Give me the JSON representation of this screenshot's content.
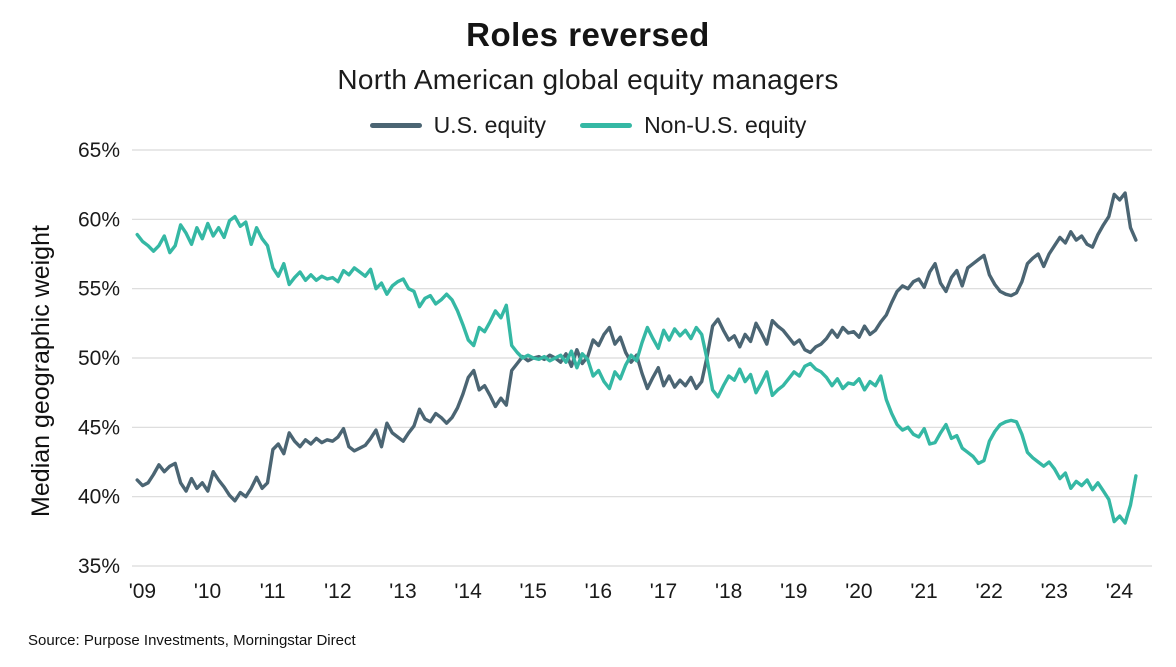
{
  "header": {
    "title": "Roles reversed",
    "subtitle": "North American global equity managers"
  },
  "legend": [
    {
      "label": "U.S. equity",
      "color": "#4b6573"
    },
    {
      "label": "Non-U.S. equity",
      "color": "#35b8a4"
    }
  ],
  "y_axis_title": "Median geographic weight",
  "source": "Source: Purpose Investments, Morningstar Direct",
  "colors": {
    "us_line": "#4b6573",
    "non_us_line": "#35b8a4",
    "gridline": "#d9d9d9",
    "tick_text": "#1a1a1a"
  },
  "chart_data": {
    "type": "line",
    "title": "Roles reversed",
    "subtitle": "North American global equity managers",
    "ylabel": "Median geographic weight",
    "xlabel": "",
    "grid": "horizontal",
    "legend_position": "top",
    "ylim": [
      35,
      65
    ],
    "xlim": [
      2008.92,
      2024.58
    ],
    "x_start": 2009.0,
    "x_step": 0.0833,
    "x_unit": "monthly, Jan 2009 - May 2024",
    "y_ticks": [
      {
        "v": 65,
        "label": "65%"
      },
      {
        "v": 60,
        "label": "60%"
      },
      {
        "v": 55,
        "label": "55%"
      },
      {
        "v": 50,
        "label": "50%"
      },
      {
        "v": 45,
        "label": "45%"
      },
      {
        "v": 40,
        "label": "40%"
      },
      {
        "v": 35,
        "label": "35%"
      }
    ],
    "x_ticks": [
      {
        "v": 2009,
        "label": "'09"
      },
      {
        "v": 2010,
        "label": "'10"
      },
      {
        "v": 2011,
        "label": "'11"
      },
      {
        "v": 2012,
        "label": "'12"
      },
      {
        "v": 2013,
        "label": "'13"
      },
      {
        "v": 2014,
        "label": "'14"
      },
      {
        "v": 2015,
        "label": "'15"
      },
      {
        "v": 2016,
        "label": "'16"
      },
      {
        "v": 2017,
        "label": "'17"
      },
      {
        "v": 2018,
        "label": "'18"
      },
      {
        "v": 2019,
        "label": "'19"
      },
      {
        "v": 2020,
        "label": "'20"
      },
      {
        "v": 2021,
        "label": "'21"
      },
      {
        "v": 2022,
        "label": "'22"
      },
      {
        "v": 2023,
        "label": "'23"
      },
      {
        "v": 2024,
        "label": "'24"
      }
    ],
    "series": [
      {
        "name": "U.S. equity",
        "color": "#4b6573",
        "values": [
          41.2,
          40.8,
          41.0,
          41.6,
          42.3,
          41.8,
          42.2,
          42.4,
          41.0,
          40.4,
          41.3,
          40.6,
          41.0,
          40.4,
          41.8,
          41.2,
          40.7,
          40.1,
          39.7,
          40.3,
          40.0,
          40.6,
          41.4,
          40.6,
          41.0,
          43.4,
          43.8,
          43.1,
          44.6,
          44.0,
          43.6,
          44.1,
          43.8,
          44.2,
          43.9,
          44.1,
          44.0,
          44.3,
          44.9,
          43.6,
          43.3,
          43.5,
          43.7,
          44.2,
          44.8,
          43.6,
          45.3,
          44.6,
          44.3,
          44.0,
          44.6,
          45.1,
          46.3,
          45.6,
          45.4,
          46.0,
          45.7,
          45.3,
          45.7,
          46.4,
          47.4,
          48.6,
          49.1,
          47.7,
          48.0,
          47.3,
          46.5,
          47.1,
          46.6,
          49.1,
          49.6,
          50.1,
          49.8,
          50.0,
          50.1,
          49.9,
          50.2,
          50.0,
          49.7,
          50.3,
          49.4,
          50.6,
          49.6,
          50.1,
          51.3,
          50.9,
          51.7,
          52.2,
          51.0,
          51.5,
          50.4,
          49.7,
          50.2,
          48.9,
          47.8,
          48.6,
          49.3,
          48.0,
          48.7,
          47.9,
          48.4,
          48.0,
          48.6,
          47.8,
          48.3,
          50.1,
          52.3,
          52.8,
          52.0,
          51.3,
          51.6,
          50.8,
          51.7,
          51.2,
          52.5,
          51.8,
          51.0,
          52.7,
          52.3,
          52.0,
          51.5,
          51.0,
          51.3,
          50.6,
          50.4,
          50.8,
          51.0,
          51.4,
          52.0,
          51.5,
          52.2,
          51.8,
          51.9,
          51.5,
          52.3,
          51.7,
          52.0,
          52.6,
          53.1,
          54.0,
          54.8,
          55.2,
          55.0,
          55.5,
          55.7,
          55.1,
          56.2,
          56.8,
          55.4,
          54.8,
          55.8,
          56.3,
          55.2,
          56.5,
          56.8,
          57.1,
          57.4,
          56.0,
          55.3,
          54.8,
          54.6,
          54.5,
          54.7,
          55.5,
          56.8,
          57.2,
          57.5,
          56.6,
          57.5,
          58.1,
          58.7,
          58.3,
          59.1,
          58.5,
          58.8,
          58.2,
          58.0,
          58.9,
          59.6,
          60.2,
          61.8,
          61.4,
          61.9,
          59.4,
          58.5
        ]
      },
      {
        "name": "Non-U.S. equity",
        "color": "#35b8a4",
        "values": [
          58.9,
          58.4,
          58.1,
          57.7,
          58.1,
          58.8,
          57.6,
          58.1,
          59.6,
          59.0,
          58.2,
          59.4,
          58.6,
          59.7,
          58.8,
          59.4,
          58.7,
          59.9,
          60.2,
          59.5,
          59.8,
          58.2,
          59.4,
          58.6,
          58.1,
          56.5,
          55.9,
          56.8,
          55.3,
          55.8,
          56.2,
          55.6,
          56.0,
          55.6,
          55.9,
          55.7,
          55.8,
          55.5,
          56.3,
          56.0,
          56.5,
          56.2,
          55.9,
          56.4,
          55.0,
          55.4,
          54.6,
          55.2,
          55.5,
          55.7,
          55.0,
          54.8,
          53.7,
          54.3,
          54.5,
          53.9,
          54.2,
          54.6,
          54.2,
          53.4,
          52.4,
          51.3,
          50.9,
          52.2,
          51.9,
          52.6,
          53.4,
          52.9,
          53.8,
          50.9,
          50.4,
          50.0,
          50.2,
          50.0,
          49.9,
          50.1,
          49.8,
          50.0,
          50.2,
          49.7,
          50.5,
          49.3,
          50.3,
          49.9,
          48.7,
          49.1,
          48.3,
          47.8,
          49.0,
          48.5,
          49.5,
          50.2,
          49.8,
          51.1,
          52.2,
          51.4,
          50.7,
          52.0,
          51.3,
          52.1,
          51.6,
          52.0,
          51.4,
          52.2,
          51.7,
          49.9,
          47.7,
          47.2,
          48.0,
          48.7,
          48.4,
          49.2,
          48.3,
          48.8,
          47.5,
          48.2,
          49.0,
          47.3,
          47.7,
          48.0,
          48.5,
          49.0,
          48.7,
          49.4,
          49.6,
          49.2,
          49.0,
          48.6,
          48.0,
          48.5,
          47.8,
          48.2,
          48.1,
          48.5,
          47.7,
          48.3,
          48.0,
          48.7,
          47.0,
          46.0,
          45.2,
          44.8,
          45.0,
          44.5,
          44.3,
          44.9,
          43.8,
          43.9,
          44.6,
          45.2,
          44.2,
          44.4,
          43.5,
          43.2,
          42.9,
          42.4,
          42.6,
          44.0,
          44.7,
          45.2,
          45.4,
          45.5,
          45.4,
          44.5,
          43.2,
          42.8,
          42.5,
          42.2,
          42.5,
          42.0,
          41.3,
          41.7,
          40.6,
          41.1,
          40.8,
          41.2,
          40.5,
          41.0,
          40.4,
          39.8,
          38.2,
          38.6,
          38.1,
          39.4,
          41.5
        ]
      }
    ]
  }
}
